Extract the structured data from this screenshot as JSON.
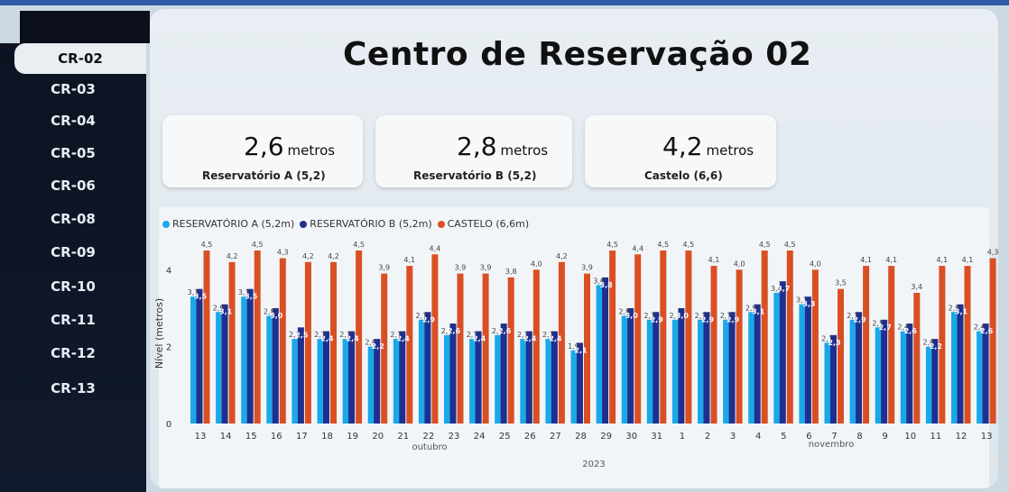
{
  "colors": {
    "a": "#1ba8e8",
    "b": "#1f2f8f",
    "castelo": "#d94f24"
  },
  "sidebar": {
    "items": [
      {
        "label": "CR-02",
        "active": true
      },
      {
        "label": "CR-03"
      },
      {
        "label": "CR-04"
      },
      {
        "label": "CR-05"
      },
      {
        "label": "CR-06"
      },
      {
        "label": "CR-08"
      },
      {
        "label": "CR-09"
      },
      {
        "label": "CR-10"
      },
      {
        "label": "CR-11"
      },
      {
        "label": "CR-12"
      },
      {
        "label": "CR-13"
      }
    ]
  },
  "header": {
    "title": "Centro de Reservação 02"
  },
  "cards": [
    {
      "value": "2,6",
      "unit": "metros",
      "label": "Reservatório A (5,2)"
    },
    {
      "value": "2,8",
      "unit": "metros",
      "label": "Reservatório B (5,2)"
    },
    {
      "value": "4,2",
      "unit": "metros",
      "label": "Castelo (6,6)"
    }
  ],
  "chart_data": {
    "type": "bar",
    "ylabel": "Nível (metros)",
    "ylim": [
      0,
      4.5
    ],
    "yticks": [
      0,
      2,
      4
    ],
    "month_labels": [
      "outubro",
      "novembro"
    ],
    "year_label": "2023",
    "categories": [
      "13",
      "14",
      "15",
      "16",
      "17",
      "18",
      "19",
      "20",
      "21",
      "22",
      "23",
      "24",
      "25",
      "26",
      "27",
      "28",
      "29",
      "30",
      "31",
      "1",
      "2",
      "3",
      "4",
      "5",
      "6",
      "7",
      "8",
      "9",
      "10",
      "11",
      "12",
      "13"
    ],
    "series": [
      {
        "name": "RESERVATÓRIO A (5,2m)",
        "values": [
          3.3,
          2.9,
          3.3,
          2.8,
          2.2,
          2.2,
          2.2,
          2.0,
          2.2,
          2.7,
          2.3,
          2.2,
          2.3,
          2.2,
          2.2,
          1.9,
          3.6,
          2.8,
          2.7,
          2.7,
          2.7,
          2.7,
          2.9,
          3.4,
          3.1,
          2.1,
          2.7,
          2.5,
          2.4,
          2.0,
          2.9,
          2.4
        ]
      },
      {
        "name": "RESERVATÓRIO B (5,2m)",
        "values": [
          3.5,
          3.1,
          3.5,
          3.0,
          2.5,
          2.4,
          2.4,
          2.2,
          2.4,
          2.9,
          2.6,
          2.4,
          2.6,
          2.4,
          2.4,
          2.1,
          3.8,
          3.0,
          2.9,
          3.0,
          2.9,
          2.9,
          3.1,
          3.7,
          3.3,
          2.3,
          2.9,
          2.7,
          2.6,
          2.2,
          3.1,
          2.6
        ]
      },
      {
        "name": "CASTELO (6,6m)",
        "values": [
          4.5,
          4.2,
          4.5,
          4.3,
          4.2,
          4.2,
          4.5,
          3.9,
          4.1,
          4.4,
          3.9,
          3.9,
          3.8,
          4.0,
          4.2,
          3.9,
          4.5,
          4.4,
          4.5,
          4.5,
          4.1,
          4.0,
          4.5,
          4.5,
          4.0,
          3.5,
          4.1,
          4.1,
          3.4,
          4.1,
          4.1,
          4.3
        ]
      }
    ]
  }
}
